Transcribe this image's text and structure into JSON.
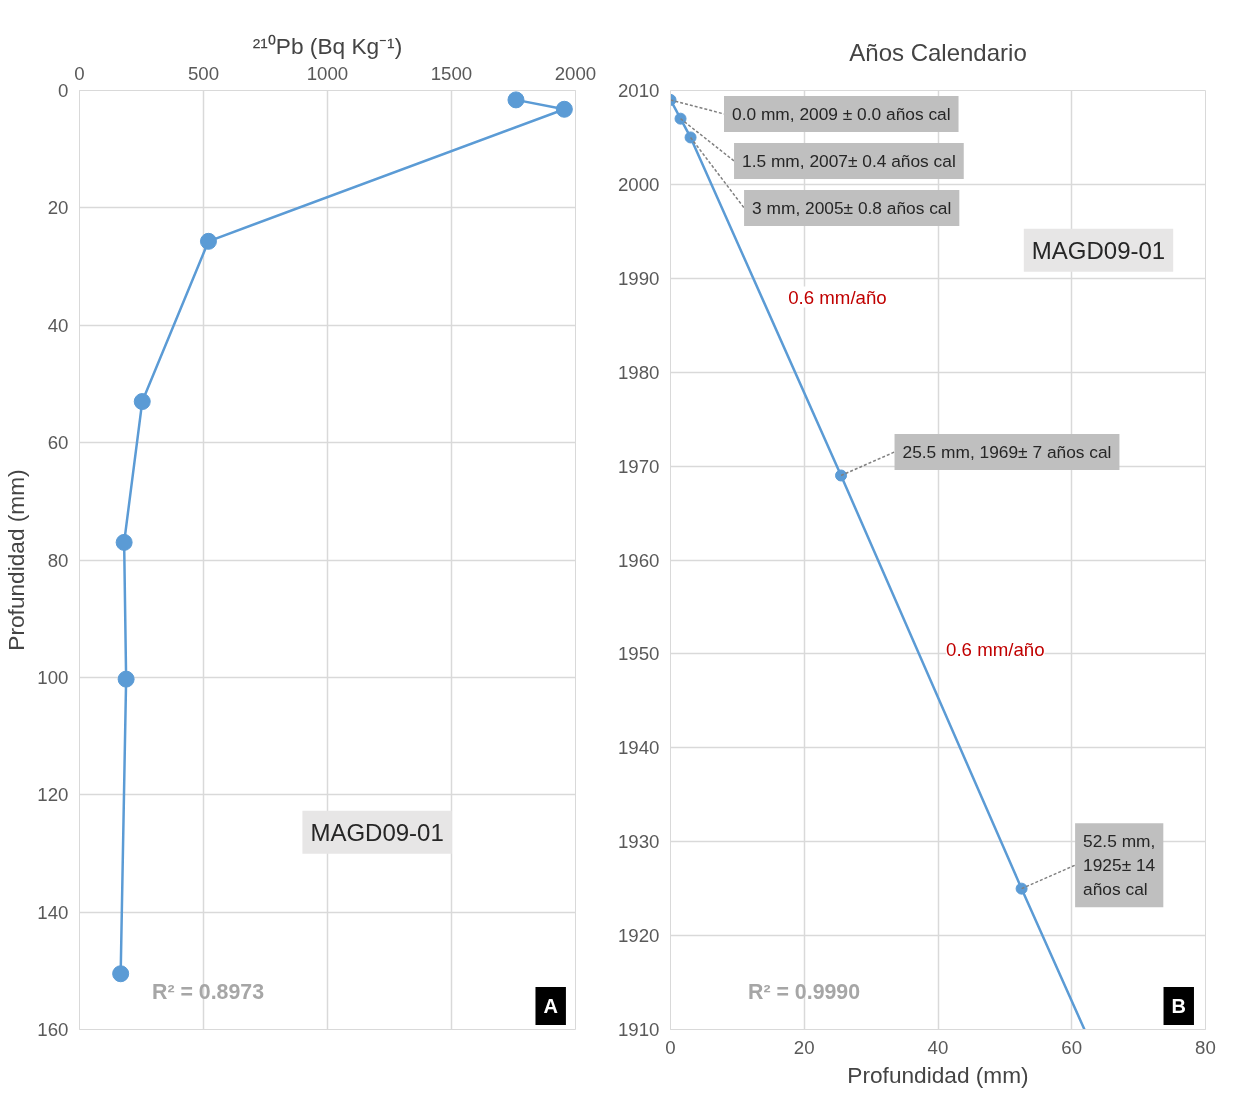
{
  "chart_data": [
    {
      "type": "line",
      "xlabel": "²¹⁰Pb (Bq Kg⁻¹)",
      "ylabel": "Profundidad (mm)",
      "marker": "circle",
      "grid": true,
      "xlim": [
        0,
        2000
      ],
      "xticks": [
        0,
        500,
        1000,
        1500,
        2000
      ],
      "ylim": [
        160,
        0
      ],
      "yticks": [
        0,
        20,
        40,
        60,
        80,
        100,
        120,
        140,
        160
      ],
      "series": [
        {
          "color": "#5b9bd5",
          "x": [
            1760,
            1955,
            520,
            253,
            180,
            188,
            166
          ],
          "values": [
            1.6,
            3.2,
            25.7,
            53,
            77,
            100.3,
            150.5
          ]
        }
      ],
      "annotations": [
        "MAGD09-01",
        "R² = 0.8973",
        "A"
      ]
    },
    {
      "type": "line",
      "title": "Años Calendario",
      "xlabel": "Profundidad (mm)",
      "grid": true,
      "xlim": [
        0,
        80
      ],
      "xticks": [
        0,
        20,
        40,
        60,
        80
      ],
      "ylim": [
        1910,
        2010
      ],
      "yticks": [
        1910,
        1920,
        1930,
        1940,
        1950,
        1960,
        1970,
        1980,
        1990,
        2000,
        2010
      ],
      "series": [
        {
          "color": "#5b9bd5",
          "x": [
            0,
            1.5,
            3,
            25.5,
            52.5,
            61.9
          ],
          "values": [
            2009,
            2007,
            2005,
            1969,
            1925,
            1910
          ],
          "marker": "none"
        },
        {
          "type": "scatter",
          "color": "#5b9bd5",
          "marker": "circle",
          "x": [
            0,
            1.5,
            3,
            25.5,
            52.5
          ],
          "values": [
            2009,
            2007,
            2005,
            1969,
            1925
          ],
          "value_labels": [
            "0.0 mm, 2009 ± 0.0 años cal",
            "1.5 mm, 2007± 0.4 años cal",
            "3 mm, 2005± 0.8 años cal",
            "25.5 mm, 1969± 7 años cal",
            "52.5 mm, 1925± 14 años cal"
          ]
        }
      ],
      "annotations": [
        "0.6 mm/año",
        "0.6 mm/año",
        "MAGD09-01",
        "R² = 0.9990",
        "B"
      ]
    }
  ]
}
